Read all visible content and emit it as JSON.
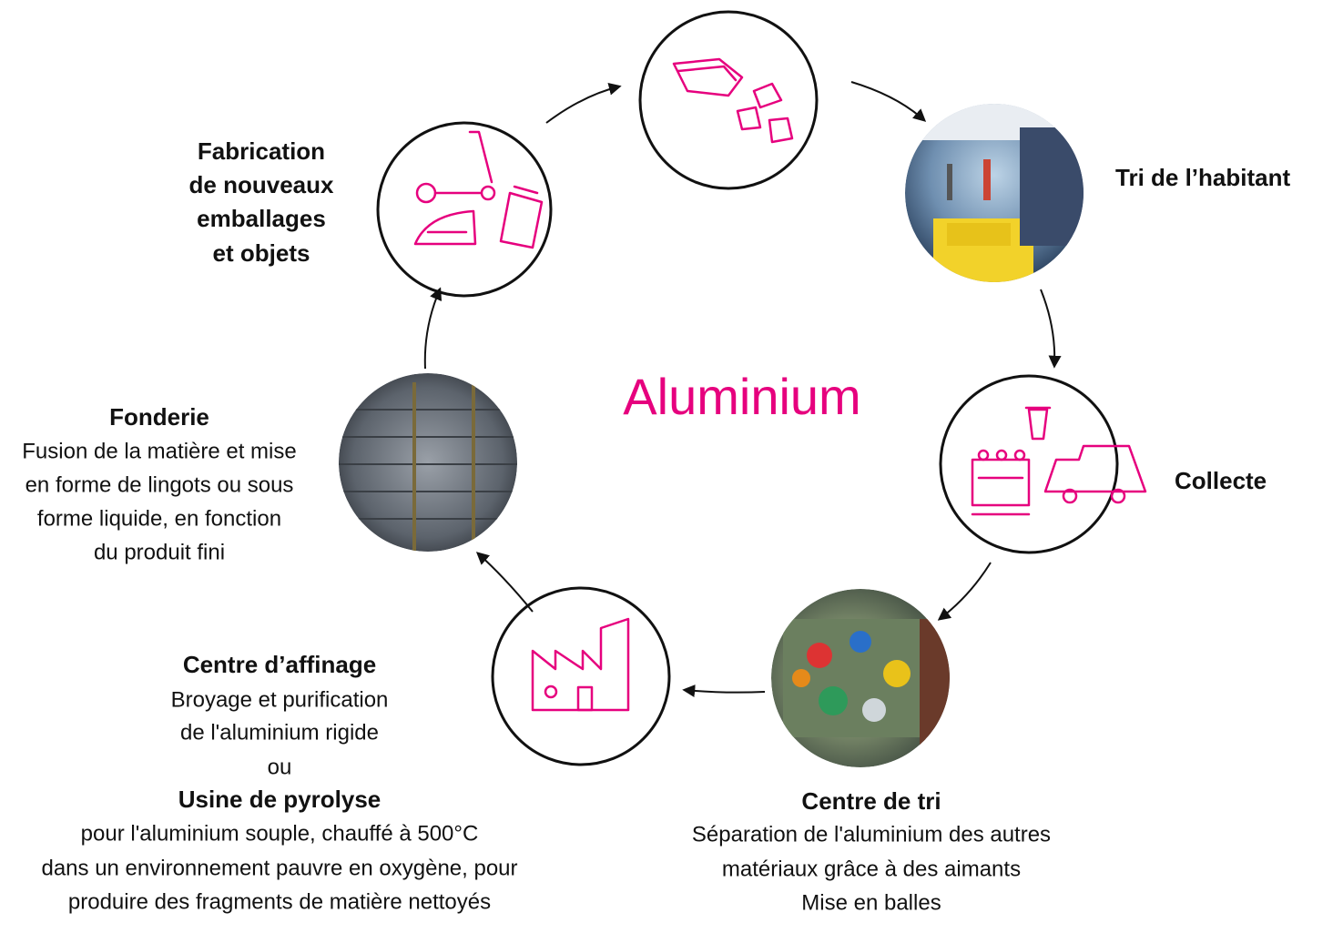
{
  "title": "Aluminium",
  "steps": [
    {
      "title_lines": [
        "Fabrication",
        "de nouveaux",
        "emballages",
        "et objets"
      ]
    },
    {
      "title_lines": [
        "Tri de l’habitant"
      ]
    },
    {
      "title_lines": [
        "Collecte"
      ]
    },
    {
      "title_lines": [
        "Centre de tri"
      ],
      "description_lines": [
        "Séparation de l'aluminium des autres",
        "matériaux grâce à des aimants",
        "Mise en balles"
      ]
    },
    {
      "title_lines": [
        "Centre d’affinage"
      ],
      "description_lines": [
        "Broyage et purification",
        "de l'aluminium rigide"
      ],
      "or": "ou",
      "alt_title": "Usine de pyrolyse",
      "alt_description_lines": [
        "pour l'aluminium souple, chauffé à 500°C",
        "dans un environnement pauvre en oxygène, pour",
        "produire des fragments de matière nettoyés"
      ]
    },
    {
      "title_lines": [
        "Fonderie"
      ],
      "description_lines": [
        "Fusion de la matière et mise",
        "en forme de lingots ou sous",
        "forme liquide, en fonction",
        "du produit fini"
      ]
    }
  ]
}
